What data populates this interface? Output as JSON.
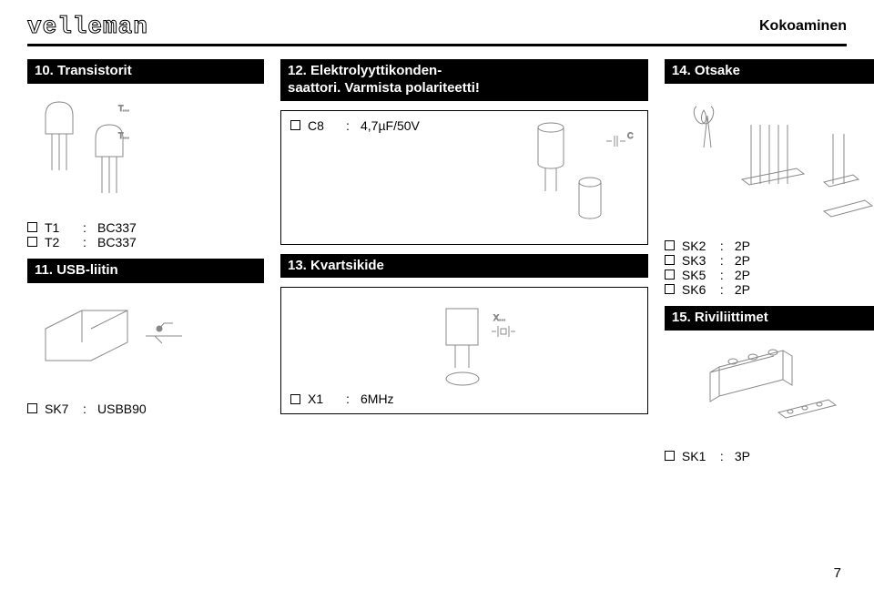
{
  "header": {
    "brand": "velleman",
    "page_label": "Kokoaminen"
  },
  "columns": [
    {
      "sections": [
        {
          "title": "10. Transistorit",
          "illust": "transistors",
          "illust_h": 130
        },
        {
          "list": [
            {
              "des": "T1",
              "val": "BC337"
            },
            {
              "des": "T2",
              "val": "BC337"
            }
          ]
        },
        {
          "title": "11. USB-liitin",
          "illust": "usb",
          "illust_h": 110
        },
        {
          "list": [
            {
              "des": "SK7",
              "colon": ":",
              "val": "USBB90"
            }
          ]
        }
      ]
    },
    {
      "sections": [
        {
          "title": "12. Elektrolyyttikonden-\nsaattori. Varmista polariteetti!",
          "boxed": true
        },
        {
          "boxed_list": [
            {
              "des": "C8",
              "val": "4,7µF/50V"
            }
          ],
          "illust": "capacitor",
          "illust_h": 130
        },
        {
          "title": "13. Kvartsikide",
          "boxed": true
        },
        {
          "boxed_illust": "crystal",
          "illust_h": 100,
          "boxed_list": [
            {
              "des": "X1",
              "val": "6MHz"
            }
          ]
        }
      ]
    },
    {
      "sections": [
        {
          "title": "14. Otsake",
          "illust": "headers",
          "illust_h": 150
        },
        {
          "list": [
            {
              "des": "SK2",
              "val": "2P"
            },
            {
              "des": "SK3",
              "val": "2P"
            },
            {
              "des": "SK5",
              "val": "2P"
            },
            {
              "des": "SK6",
              "val": "2P"
            }
          ]
        },
        {
          "title": "15. Riviliittimet",
          "illust": "terminal",
          "illust_h": 110
        },
        {
          "list": [
            {
              "des": "SK1",
              "val": "3P"
            }
          ]
        }
      ]
    }
  ],
  "page_number": 7
}
